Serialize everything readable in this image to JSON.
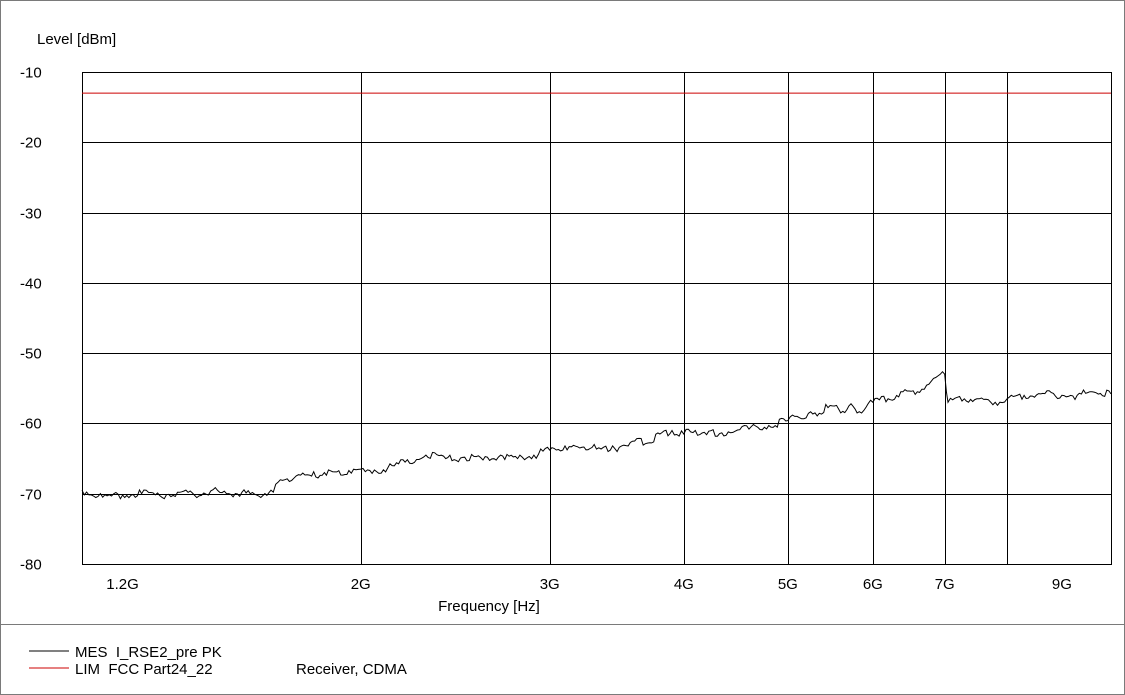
{
  "chart_data": {
    "type": "line",
    "ylabel": "Level [dBm]",
    "xlabel": "Frequency [Hz]",
    "x_scale": "log",
    "xlim": [
      1100000000,
      10000000000
    ],
    "ylim": [
      -80,
      -10
    ],
    "grid": true,
    "y_ticks": [
      -10,
      -20,
      -30,
      -40,
      -50,
      -60,
      -70,
      -80
    ],
    "y_tick_labels": [
      "-10",
      "-20",
      "-30",
      "-40",
      "-50",
      "-60",
      "-70",
      "-80"
    ],
    "x_ticks": [
      1200000000,
      2000000000,
      3000000000,
      4000000000,
      5000000000,
      6000000000,
      7000000000,
      9000000000
    ],
    "x_tick_labels": [
      "1.2G",
      "2G",
      "3G",
      "4G",
      "5G",
      "6G",
      "7G",
      "9G"
    ],
    "x_gridlines": [
      2000000000,
      3000000000,
      4000000000,
      5000000000,
      6000000000,
      7000000000,
      8000000000
    ],
    "series": [
      {
        "name": "MES  I_RSE2_pre PK",
        "color": "#000000",
        "x": [
          1100000000,
          1150000000,
          1200000000,
          1250000000,
          1300000000,
          1350000000,
          1400000000,
          1450000000,
          1500000000,
          1550000000,
          1600000000,
          1650000000,
          1700000000,
          1750000000,
          1800000000,
          1850000000,
          1900000000,
          1950000000,
          2000000000,
          2100000000,
          2200000000,
          2300000000,
          2400000000,
          2500000000,
          2600000000,
          2700000000,
          2800000000,
          2900000000,
          3000000000,
          3100000000,
          3200000000,
          3300000000,
          3400000000,
          3500000000,
          3600000000,
          3700000000,
          3800000000,
          3900000000,
          4000000000,
          4100000000,
          4200000000,
          4400000000,
          4600000000,
          4800000000,
          5000000000,
          5100000000,
          5200000000,
          5300000000,
          5500000000,
          5600000000,
          5700000000,
          5800000000,
          6000000000,
          6200000000,
          6400000000,
          6600000000,
          6800000000,
          7000000000,
          7050000000,
          7300000000,
          7500000000,
          7800000000,
          8000000000,
          8300000000,
          8600000000,
          9000000000,
          9300000000,
          9600000000,
          10000000000
        ],
        "values": [
          -69.5,
          -70.5,
          -70.2,
          -70.0,
          -70.3,
          -69.8,
          -70.2,
          -69.6,
          -70.0,
          -69.8,
          -70.2,
          -69.5,
          -68.0,
          -67.3,
          -67.5,
          -67.0,
          -66.9,
          -66.7,
          -66.5,
          -66.6,
          -65.5,
          -64.5,
          -65.0,
          -64.8,
          -65.2,
          -64.5,
          -65.0,
          -64.5,
          -63.8,
          -63.2,
          -63.5,
          -63.0,
          -64.0,
          -63.2,
          -62.5,
          -62.8,
          -61.5,
          -61.0,
          -61.5,
          -61.0,
          -61.6,
          -61.2,
          -60.8,
          -60.3,
          -59.6,
          -59.0,
          -59.2,
          -58.5,
          -57.5,
          -58.5,
          -57.5,
          -58.5,
          -57.0,
          -56.5,
          -55.5,
          -55.5,
          -54.0,
          -53.0,
          -57.0,
          -56.5,
          -56.5,
          -57.0,
          -56.5,
          -56.0,
          -55.8,
          -56.0,
          -56.0,
          -55.5,
          -55.8
        ]
      },
      {
        "name": "LIM  FCC Part24_22",
        "color": "#cc0000",
        "x": [
          1100000000,
          10000000000
        ],
        "values": [
          -13,
          -13
        ]
      }
    ],
    "legend": [
      {
        "label": "MES  I_RSE2_pre PK",
        "note": ""
      },
      {
        "label": "LIM  FCC Part24_22",
        "note": "Receiver, CDMA"
      }
    ]
  }
}
